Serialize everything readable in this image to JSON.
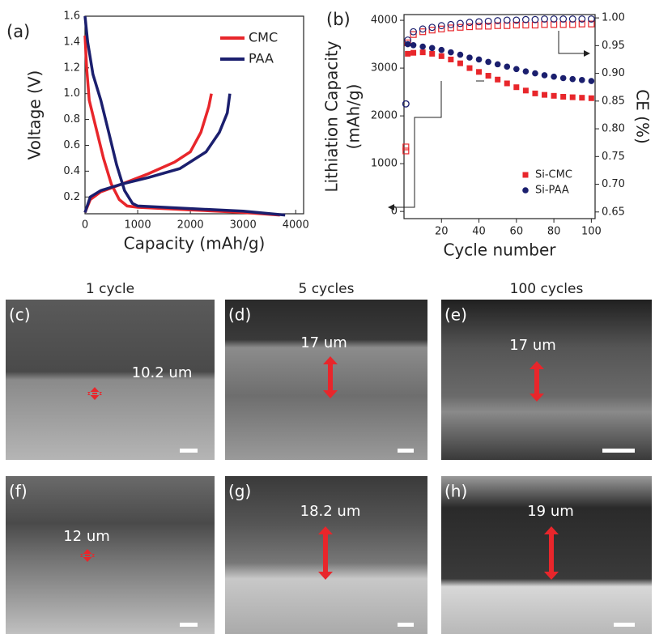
{
  "chart_data": [
    {
      "type": "line",
      "title": "(a)",
      "xlabel": "Capacity (mAh/g)",
      "ylabel": "Voltage (V)",
      "xlim": [
        0,
        4150
      ],
      "xticks": [
        0,
        1000,
        2000,
        3000,
        4000
      ],
      "ylim": [
        0.07,
        1.6
      ],
      "yticks": [
        {
          "value": 0.2,
          "label": "0.2"
        },
        {
          "value": 0.4,
          "label": "0.4"
        },
        {
          "value": 0.6,
          "label": "0.6"
        },
        {
          "value": 0.8,
          "label": "0.8"
        },
        {
          "value": 1.0,
          "label": "1.0"
        },
        {
          "value": 1.2,
          "label": "1.2"
        },
        {
          "value": 1.4,
          "label": "1.4"
        },
        {
          "value": 1.6,
          "label": "1.6"
        }
      ],
      "series": [
        {
          "name": "CMC",
          "color": "#e8262b",
          "x": [
            0,
            30,
            80,
            200,
            350,
            500,
            650,
            800,
            1000,
            2000,
            3000,
            3700,
            null,
            0,
            100,
            300,
            700,
            1200,
            1700,
            2000,
            2200,
            2350,
            2400
          ],
          "values": [
            1.45,
            1.2,
            0.95,
            0.75,
            0.5,
            0.3,
            0.18,
            0.13,
            0.12,
            0.1,
            0.08,
            0.06,
            null,
            0.08,
            0.18,
            0.24,
            0.3,
            0.38,
            0.47,
            0.55,
            0.7,
            0.9,
            1.0
          ]
        },
        {
          "name": "PAA",
          "color": "#1b1f6e",
          "x": [
            0,
            50,
            150,
            300,
            450,
            600,
            750,
            900,
            1000,
            2000,
            3000,
            3800,
            null,
            0,
            100,
            300,
            700,
            1200,
            1800,
            2300,
            2550,
            2700,
            2750
          ],
          "values": [
            1.6,
            1.4,
            1.15,
            0.95,
            0.7,
            0.45,
            0.25,
            0.15,
            0.13,
            0.11,
            0.09,
            0.06,
            null,
            0.08,
            0.2,
            0.25,
            0.3,
            0.35,
            0.42,
            0.55,
            0.7,
            0.85,
            1.0
          ]
        }
      ]
    },
    {
      "type": "scatter",
      "title": "(b)",
      "xlabel": "Cycle number",
      "ylabel": "Lithiation Capacity",
      "ylabel2": "(mAh/g)",
      "y2label": "CE (%)",
      "xlim": [
        0,
        102
      ],
      "xticks": [
        20,
        40,
        60,
        80,
        100
      ],
      "ylim": [
        -150,
        4120
      ],
      "yticks": [
        0,
        1000,
        2000,
        3000,
        4000
      ],
      "y2lim": [
        0.638,
        1.006
      ],
      "y2ticks": [
        {
          "value": 0.65,
          "label": "0.65"
        },
        {
          "value": 0.7,
          "label": "0.70"
        },
        {
          "value": 0.75,
          "label": "0.75"
        },
        {
          "value": 0.8,
          "label": "0.80"
        },
        {
          "value": 0.85,
          "label": "0.85"
        },
        {
          "value": 0.9,
          "label": "0.90"
        },
        {
          "value": 0.95,
          "label": "0.95"
        },
        {
          "value": 1.0,
          "label": "1.00"
        }
      ],
      "x": [
        1,
        2,
        5,
        10,
        15,
        20,
        25,
        30,
        35,
        40,
        45,
        50,
        55,
        60,
        65,
        70,
        75,
        80,
        85,
        90,
        95,
        100
      ],
      "series": [
        {
          "name": "Si-CMC",
          "color": "#e8262b",
          "marker": "square",
          "values": [
            1350,
            3300,
            3320,
            3330,
            3300,
            3250,
            3180,
            3100,
            3000,
            2920,
            2840,
            2760,
            2680,
            2600,
            2530,
            2470,
            2440,
            2420,
            2400,
            2390,
            2380,
            2370
          ],
          "ce": [
            0.76,
            0.955,
            0.97,
            0.975,
            0.978,
            0.98,
            0.982,
            0.983,
            0.984,
            0.985,
            0.985,
            0.986,
            0.986,
            0.987,
            0.987,
            0.987,
            0.988,
            0.988,
            0.988,
            0.988,
            0.989,
            0.989
          ]
        },
        {
          "name": "Si-PAA",
          "color": "#1b1f6e",
          "marker": "circle",
          "values": [
            2250,
            3500,
            3480,
            3450,
            3420,
            3380,
            3330,
            3280,
            3220,
            3180,
            3130,
            3080,
            3030,
            2980,
            2930,
            2890,
            2850,
            2820,
            2790,
            2770,
            2750,
            2730
          ],
          "ce": [
            0.845,
            0.96,
            0.975,
            0.98,
            0.983,
            0.986,
            0.988,
            0.99,
            0.992,
            0.993,
            0.994,
            0.995,
            0.996,
            0.996,
            0.997,
            0.997,
            0.998,
            0.998,
            0.998,
            0.998,
            0.998,
            0.998
          ]
        }
      ]
    }
  ],
  "columns": [
    "1 cycle",
    "5 cycles",
    "100 cycles"
  ],
  "panels": [
    {
      "label": "(c)",
      "measure": "10.2 um"
    },
    {
      "label": "(d)",
      "measure": "17 um"
    },
    {
      "label": "(e)",
      "measure": "17 um"
    },
    {
      "label": "(f)",
      "measure": "12 um"
    },
    {
      "label": "(g)",
      "measure": "18.2 um"
    },
    {
      "label": "(h)",
      "measure": "19 um"
    }
  ]
}
